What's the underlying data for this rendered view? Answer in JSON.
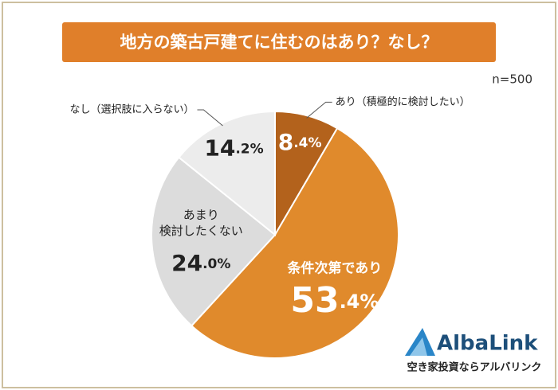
{
  "chart_data": {
    "type": "pie",
    "title": "地方の築古戸建てに住むのはあり？なし？",
    "subtitle": "n=500",
    "categories": [
      "あり（積極的に検討したい）",
      "条件次第であり",
      "あまり\n検討したくない",
      "なし（選択肢に入らない）"
    ],
    "values": [
      8.4,
      53.4,
      24,
      14.2
    ],
    "value_labels": [
      "8.4%",
      "53.4%",
      "24.0%",
      "14.2%"
    ],
    "colors": [
      "#b3621c",
      "#e08a2c",
      "#dcdcdc",
      "#ececec"
    ]
  },
  "brand": {
    "name": "AlbaLink",
    "tagline": "空き家投資ならアルバリンク"
  }
}
